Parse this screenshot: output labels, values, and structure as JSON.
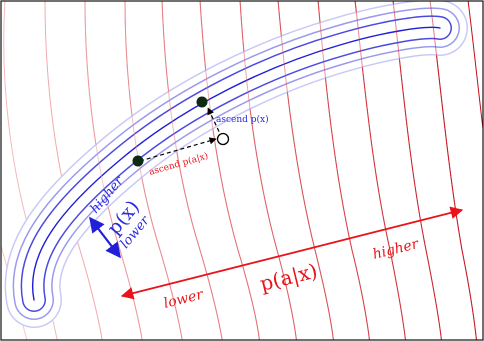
{
  "labels": {
    "pax": "p(a|x)",
    "pax_lower": "lower",
    "pax_higher": "higher",
    "px": "p(x)",
    "px_higher": "higher",
    "px_lower": "lower",
    "ascend_px": "ascend p(x)",
    "ascend_pax": "ascend p(a|x)"
  },
  "colors": {
    "red": "#e8141a",
    "blue": "#2020d8",
    "dark_point": "#0d2a12",
    "frame": "#111111"
  }
}
